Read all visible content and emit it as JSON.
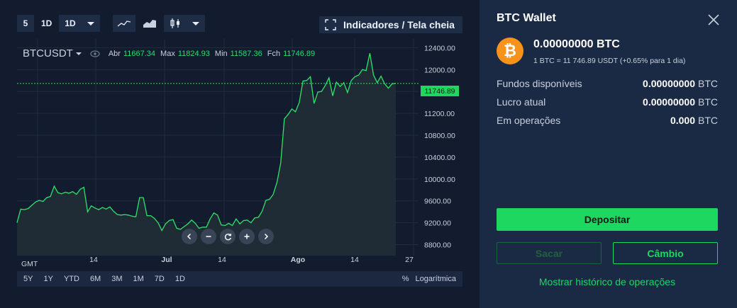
{
  "toolbar": {
    "count_label": "5",
    "interval_label": "1D",
    "interval_select_value": "1D",
    "chart_type_icons": [
      "line-chart-icon",
      "area-chart-icon",
      "candlestick-icon"
    ],
    "indicators_label": "Indicadores / Tela cheia"
  },
  "legend": {
    "symbol": "BTCUSDT",
    "open_label": "Abr",
    "open": "11667.34",
    "max_label": "Max",
    "max": "11824.93",
    "min_label": "Min",
    "min": "11587.36",
    "close_label": "Fch",
    "close": "11746.89"
  },
  "current_price_tag": "11746.89",
  "range_bar": {
    "ranges": [
      "5Y",
      "1Y",
      "YTD",
      "6M",
      "3M",
      "1M",
      "7D",
      "1D"
    ],
    "percent_label": "%",
    "log_label": "Logarítmica"
  },
  "colors": {
    "accent": "#1ed760",
    "coin": "#f7931a",
    "panel": "#1b2a44",
    "chart_bg": "#131b2e"
  },
  "chart_data": {
    "type": "area",
    "title": "",
    "xlabel": "",
    "ylabel": "",
    "timezone_label": "GMT",
    "x_ticks": [
      "14",
      "Jul",
      "14",
      "Ago",
      "14",
      "27"
    ],
    "y_ticks": [
      "12400.00",
      "12000.00",
      "11600.00",
      "11200.00",
      "10800.00",
      "10400.00",
      "10000.00",
      "9600.00",
      "9200.00",
      "8800.00"
    ],
    "ylim": [
      8600,
      12560
    ],
    "grid": true,
    "series": [
      {
        "values": [
          9200,
          9450,
          9440,
          9460,
          9520,
          9580,
          9610,
          9590,
          9660,
          9680,
          9870,
          9750,
          9730,
          9760,
          9740,
          9770,
          9720,
          9810,
          9850,
          9400,
          9510,
          9470,
          9440,
          9480,
          9450,
          9490,
          9410,
          9350,
          9340,
          9350,
          9340,
          9320,
          9310,
          9660,
          9660,
          9330,
          9330,
          9280,
          9200,
          9060,
          9180,
          9240,
          9260,
          9100,
          9080,
          9130,
          9180,
          9250,
          9190,
          9100,
          9120,
          9120,
          9270,
          9380,
          9340,
          9160,
          9150,
          9190,
          9150,
          9270,
          9180,
          9240,
          9250,
          9200,
          9290,
          9300,
          9410,
          9610,
          9630,
          9720,
          9940,
          10290,
          11100,
          11180,
          11280,
          11230,
          11400,
          11790,
          11800,
          11870,
          11380,
          11590,
          11600,
          11710,
          11850,
          11520,
          11770,
          11690,
          11760,
          11580,
          11800,
          11870,
          11900,
          12000,
          11980,
          12300,
          11900,
          11760,
          11880,
          11740,
          11660,
          11740,
          11750
        ]
      }
    ]
  },
  "wallet": {
    "title": "BTC Wallet",
    "coin_symbol": "₿",
    "balance": "0.00000000 BTC",
    "rate": "1 BTC = 11 746.89 USDT (+0.65% para 1 dia)",
    "rows": [
      {
        "label": "Fundos disponíveis",
        "value": "0.00000000",
        "unit": "BTC"
      },
      {
        "label": "Lucro atual",
        "value": "0.00000000",
        "unit": "BTC"
      },
      {
        "label": "Em operações",
        "value": "0.000",
        "unit": "BTC"
      }
    ],
    "deposit_label": "Depositar",
    "withdraw_label": "Sacar",
    "exchange_label": "Câmbio",
    "history_label": "Mostrar histórico de operações"
  }
}
